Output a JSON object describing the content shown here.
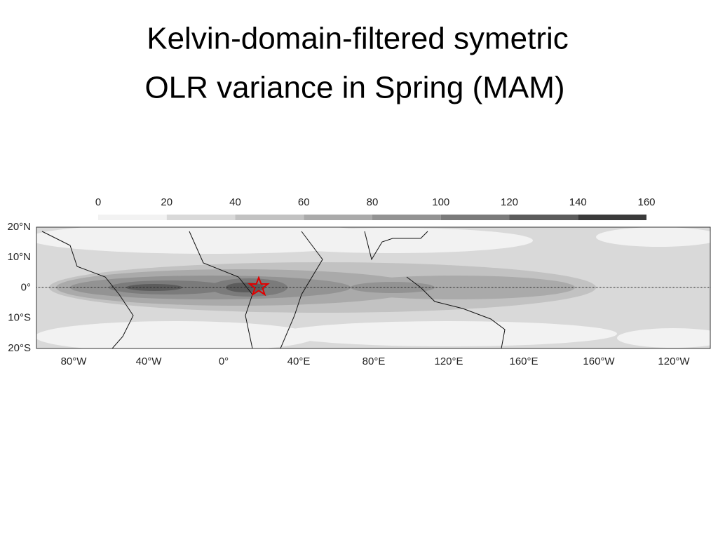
{
  "title": [
    "Kelvin-domain-filtered symetric",
    "OLR variance in Spring (MAM)"
  ],
  "colorbar": {
    "ticks": [
      0,
      20,
      40,
      60,
      80,
      100,
      120,
      140,
      160
    ],
    "colors": [
      "#f2f2f2",
      "#d9d9d9",
      "#c2c2c2",
      "#aaaaaa",
      "#939393",
      "#7b7b7b",
      "#5c5c5c",
      "#3a3a3a"
    ]
  },
  "map": {
    "y_labels": [
      "20°N",
      "10°N",
      "0°",
      "10°S",
      "20°S"
    ],
    "x_labels": [
      "80°W",
      "40°W",
      "0°",
      "40°E",
      "80°E",
      "120°E",
      "160°E",
      "160°W",
      "120°W"
    ]
  }
}
